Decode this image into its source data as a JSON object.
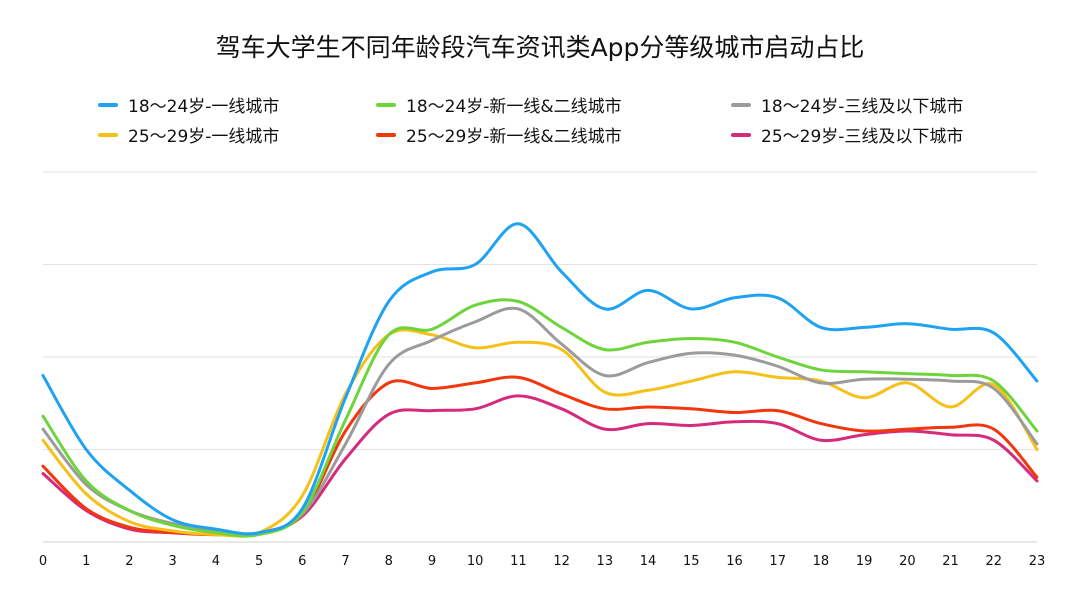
{
  "chart_data": {
    "type": "line",
    "title": "驾车大学生不同年龄段汽车资讯类App分等级城市启动占比",
    "x": [
      "0",
      "1",
      "2",
      "3",
      "4",
      "5",
      "6",
      "7",
      "8",
      "9",
      "10",
      "11",
      "12",
      "13",
      "14",
      "15",
      "16",
      "17",
      "18",
      "19",
      "20",
      "21",
      "22",
      "23"
    ],
    "ylim": [
      0,
      10
    ],
    "grid": true,
    "legend_position": "top",
    "series": [
      {
        "name": "18～24岁-一线城市",
        "color": "#1fa2f2",
        "values": [
          4.5,
          2.5,
          1.4,
          0.6,
          0.35,
          0.25,
          0.9,
          3.9,
          6.5,
          7.3,
          7.5,
          8.6,
          7.3,
          6.3,
          6.8,
          6.3,
          6.6,
          6.6,
          5.8,
          5.8,
          5.9,
          5.75,
          5.65,
          4.35
        ]
      },
      {
        "name": "18～24岁-新一线&二线城市",
        "color": "#6dd43c",
        "values": [
          3.4,
          1.65,
          0.85,
          0.45,
          0.25,
          0.2,
          0.8,
          3.3,
          5.6,
          5.75,
          6.4,
          6.5,
          5.8,
          5.2,
          5.4,
          5.5,
          5.4,
          5.0,
          4.65,
          4.6,
          4.55,
          4.5,
          4.35,
          3.0
        ]
      },
      {
        "name": "18～24岁-三线及以下城市",
        "color": "#9b9b9b",
        "values": [
          3.05,
          1.55,
          0.85,
          0.5,
          0.3,
          0.25,
          0.75,
          2.65,
          4.8,
          5.45,
          5.95,
          6.3,
          5.35,
          4.5,
          4.85,
          5.1,
          5.05,
          4.75,
          4.3,
          4.4,
          4.4,
          4.35,
          4.15,
          2.65
        ]
      },
      {
        "name": "25～29岁-一线城市",
        "color": "#f5c018",
        "values": [
          2.75,
          1.3,
          0.55,
          0.3,
          0.2,
          0.25,
          1.25,
          4.0,
          5.6,
          5.6,
          5.25,
          5.4,
          5.2,
          4.05,
          4.1,
          4.35,
          4.6,
          4.45,
          4.35,
          3.9,
          4.3,
          3.65,
          4.25,
          2.5
        ]
      },
      {
        "name": "25～29岁-新一线&二线城市",
        "color": "#f2370f",
        "values": [
          2.05,
          0.9,
          0.4,
          0.25,
          0.2,
          0.25,
          0.75,
          3.0,
          4.3,
          4.15,
          4.3,
          4.45,
          4.0,
          3.6,
          3.65,
          3.6,
          3.5,
          3.55,
          3.2,
          3.0,
          3.05,
          3.1,
          3.05,
          1.75
        ]
      },
      {
        "name": "25～29岁-三线及以下城市",
        "color": "#d62a7a",
        "values": [
          1.85,
          0.85,
          0.35,
          0.25,
          0.2,
          0.25,
          0.7,
          2.25,
          3.45,
          3.55,
          3.6,
          3.95,
          3.6,
          3.05,
          3.2,
          3.15,
          3.25,
          3.2,
          2.75,
          2.9,
          3.0,
          2.9,
          2.75,
          1.65
        ]
      }
    ]
  }
}
